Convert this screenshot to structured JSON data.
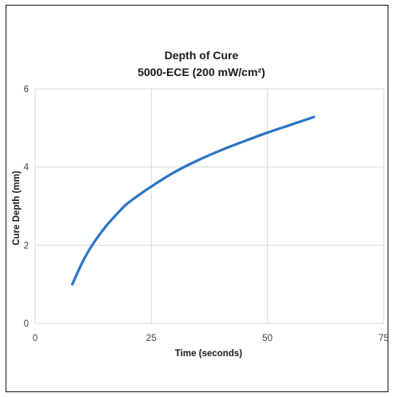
{
  "chart_data": {
    "type": "line",
    "title": "Depth of Cure",
    "subtitle": "5000-ECE (200 mW/cm²)",
    "xlabel": "Time (seconds)",
    "ylabel": "Cure Depth (mm)",
    "xlim": [
      0,
      75
    ],
    "ylim": [
      0,
      6
    ],
    "x_ticks": [
      "0",
      "25",
      "50",
      "75"
    ],
    "y_ticks": [
      "0",
      "2",
      "4",
      "6"
    ],
    "grid": true,
    "legend": "none",
    "series": [
      {
        "color": "#2a74c4",
        "points": [
          [
            8,
            1.0
          ],
          [
            10,
            1.52
          ],
          [
            12,
            1.95
          ],
          [
            15,
            2.45
          ],
          [
            18,
            2.85
          ],
          [
            20,
            3.08
          ],
          [
            25,
            3.5
          ],
          [
            30,
            3.87
          ],
          [
            35,
            4.17
          ],
          [
            40,
            4.43
          ],
          [
            45,
            4.66
          ],
          [
            50,
            4.88
          ],
          [
            55,
            5.08
          ],
          [
            60,
            5.28
          ]
        ]
      }
    ]
  }
}
